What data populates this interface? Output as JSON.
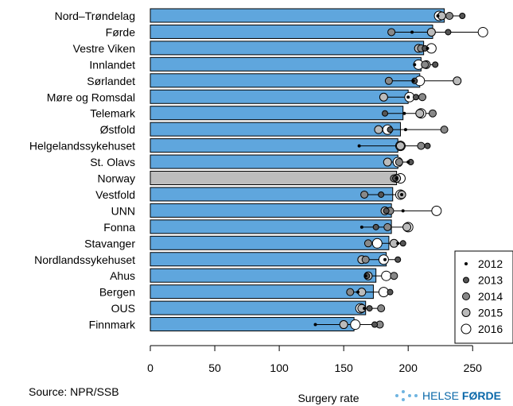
{
  "source_text": "Source: NPR/SSB",
  "logo": {
    "word1": "HELSE",
    "word2": "FØRDE"
  },
  "colors": {
    "bar": "#5fa6dd",
    "highlight": "#bdbdbd"
  },
  "chart_data": {
    "type": "bar",
    "orientation": "horizontal",
    "xlabel": "Surgery rate",
    "xlim": [
      0,
      280
    ],
    "xticks": [
      0,
      50,
      100,
      150,
      200,
      250
    ],
    "categories": [
      "Nord–Trøndelag",
      "Førde",
      "Vestre Viken",
      "Innlandet",
      "Sørlandet",
      "Møre og Romsdal",
      "Telemark",
      "Østfold",
      "Helgelandssykehuset",
      "St. Olavs",
      "Norway",
      "Vestfold",
      "UNN",
      "Fonna",
      "Stavanger",
      "Nordlandssykehuset",
      "Ahus",
      "Bergen",
      "OUS",
      "Finnmark"
    ],
    "highlight_category": "Norway",
    "values": [
      228,
      219,
      212,
      210,
      209,
      200,
      196,
      194,
      192,
      192,
      191,
      188,
      187,
      187,
      185,
      183,
      175,
      173,
      167,
      158
    ],
    "series": [
      {
        "name": "2012",
        "values": [
          223,
          203,
          215,
          205,
          204,
          200,
          197,
          198,
          162,
          200,
          191,
          195,
          196,
          164,
          192,
          182,
          167,
          161,
          166,
          128
        ]
      },
      {
        "name": "2013",
        "values": [
          242,
          231,
          213,
          221,
          205,
          206,
          182,
          186,
          215,
          202,
          190,
          179,
          183,
          175,
          196,
          192,
          168,
          186,
          170,
          174
        ]
      },
      {
        "name": "2014",
        "values": [
          232,
          187,
          210,
          213,
          185,
          211,
          219,
          228,
          210,
          193,
          189,
          166,
          186,
          184,
          169,
          167,
          189,
          155,
          179,
          178
        ]
      },
      {
        "name": "2015",
        "values": [
          226,
          218,
          208,
          214,
          238,
          181,
          209,
          177,
          194,
          184,
          191,
          195,
          182,
          199,
          189,
          164,
          169,
          164,
          164,
          150
        ]
      },
      {
        "name": "2016",
        "values": [
          224,
          258,
          218,
          208,
          209,
          201,
          210,
          184,
          194,
          192,
          194,
          194,
          222,
          200,
          176,
          181,
          183,
          181,
          163,
          159
        ]
      }
    ],
    "series_style": [
      {
        "fill": "#000000",
        "r": 2
      },
      {
        "fill": "#555555",
        "r": 3.5
      },
      {
        "fill": "#888888",
        "r": 4.5
      },
      {
        "fill": "#bbbbbb",
        "r": 5
      },
      {
        "fill": "#ffffff",
        "r": 6
      }
    ],
    "legend_position": "bottom-right"
  }
}
